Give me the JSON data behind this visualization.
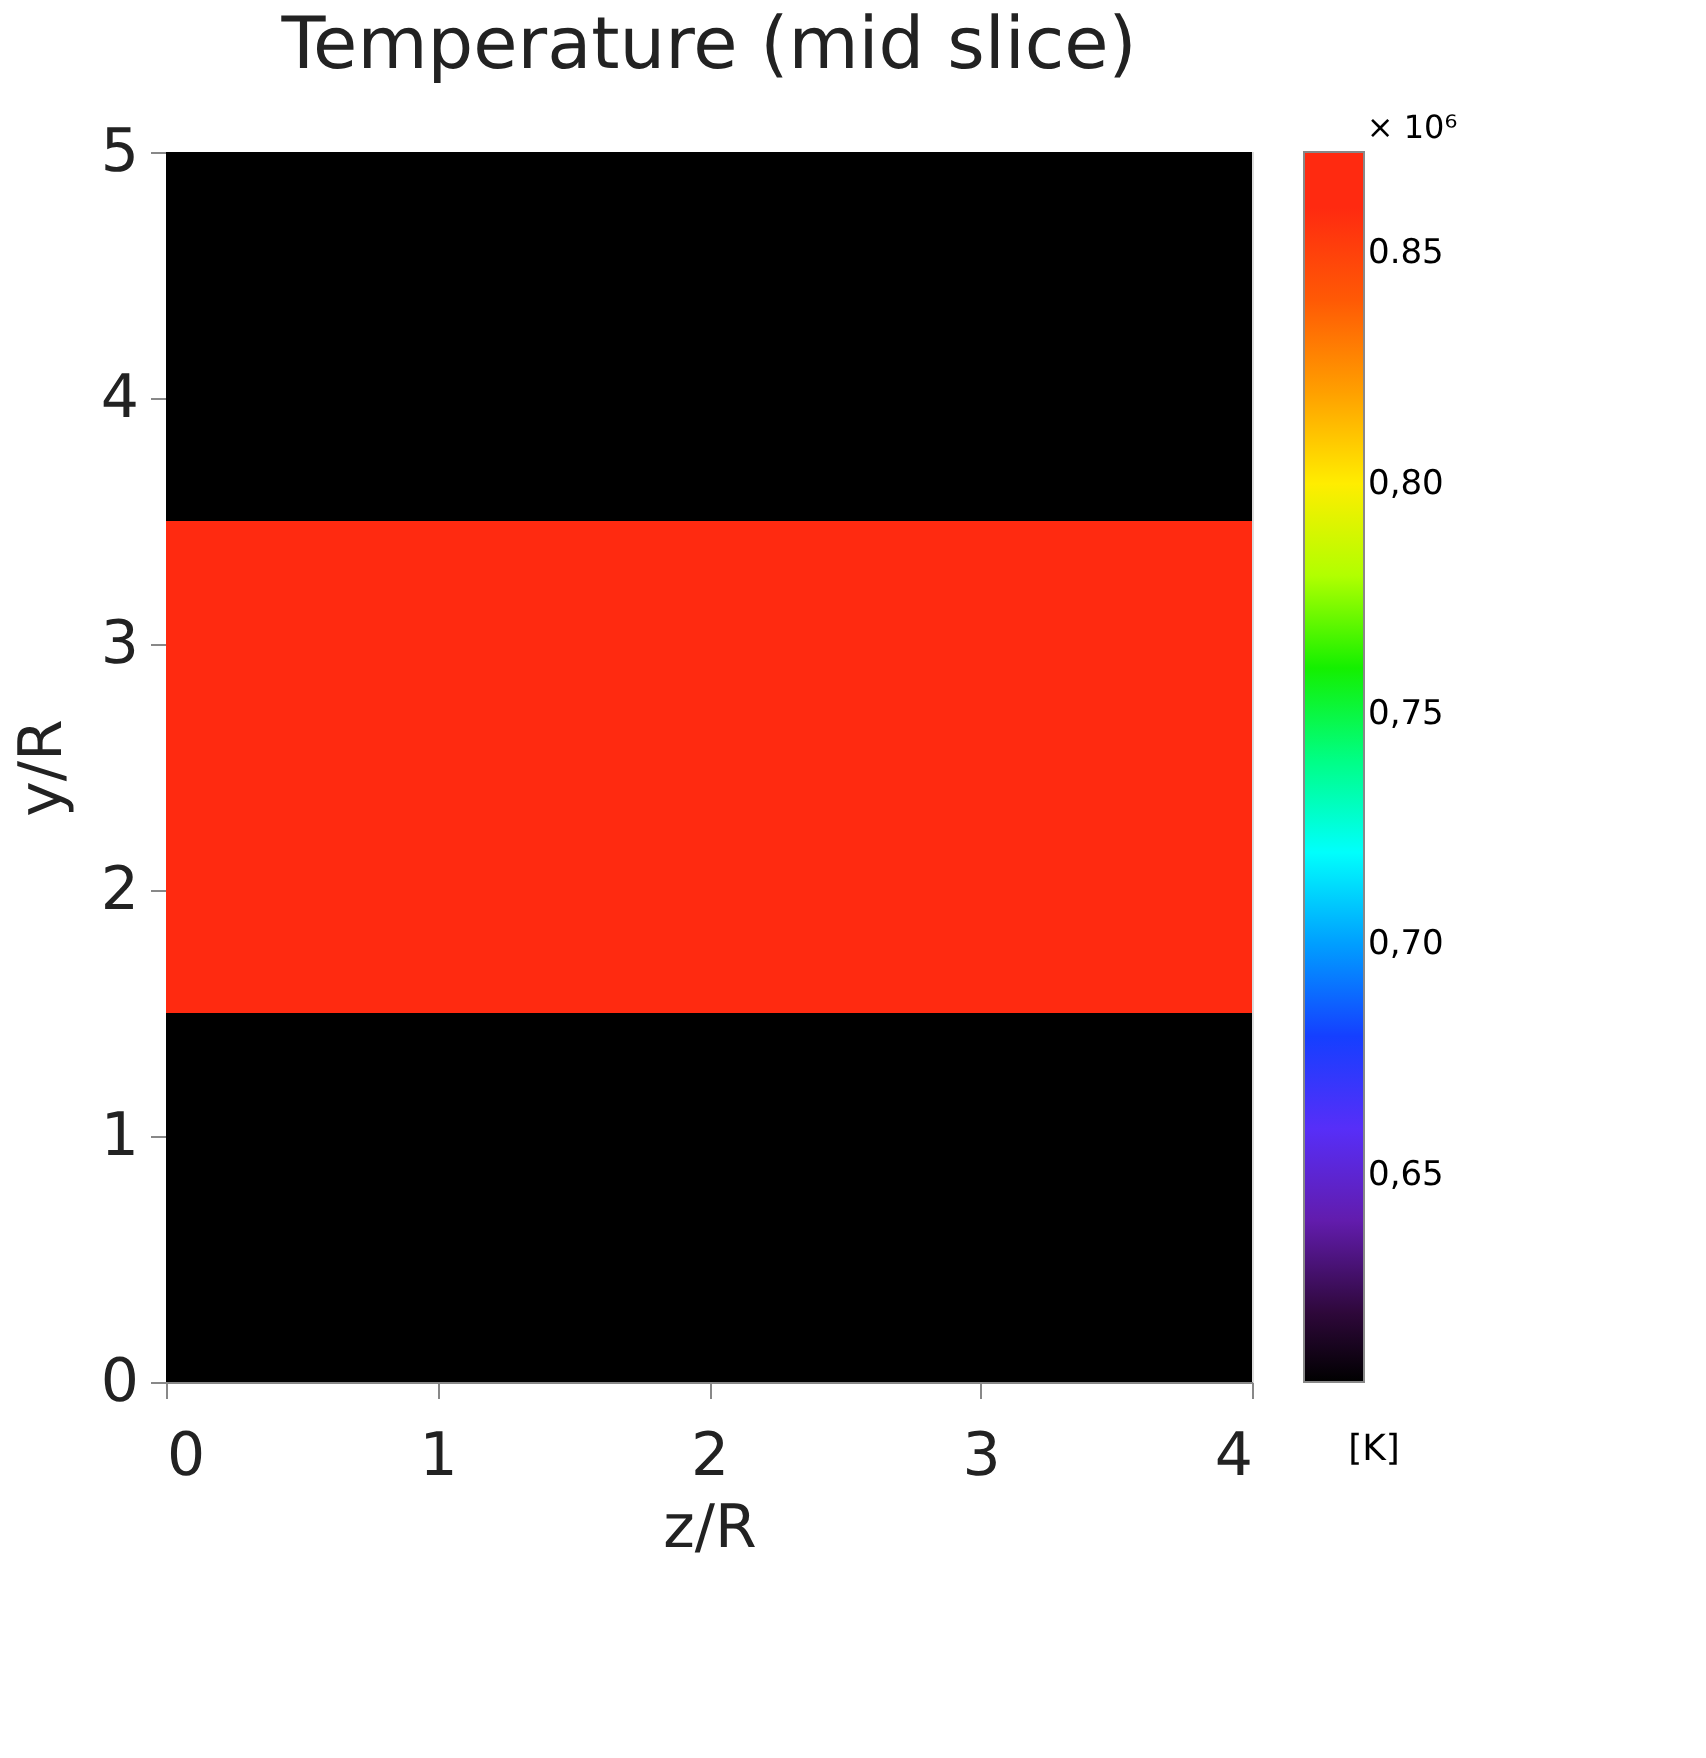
{
  "chart_data": {
    "type": "heatmap",
    "title": "Temperature (mid slice)",
    "xlabel": "z/R",
    "ylabel": "y/R",
    "clabel": "[K]",
    "annotations": [
      "× 10⁶"
    ],
    "cells": [
      [
        0.605
      ],
      [
        0.605
      ],
      [
        0.605
      ],
      [
        0.872
      ],
      [
        0.872
      ],
      [
        0.872
      ],
      [
        0.872
      ],
      [
        0.605
      ],
      [
        0.605
      ],
      [
        0.605
      ]
    ],
    "xlim": [
      0,
      4
    ],
    "ylim": [
      0,
      5
    ],
    "xticks": [
      0,
      1,
      2,
      3,
      4
    ],
    "yticks": [
      0,
      1,
      2,
      3,
      4,
      5
    ],
    "clim": [
      0.605,
      0.872
    ],
    "cticks": [
      {
        "value": 0.65,
        "label": "0,65"
      },
      {
        "value": 0.7,
        "label": "0,70"
      },
      {
        "value": 0.75,
        "label": "0,75"
      },
      {
        "value": 0.8,
        "label": "0,80"
      },
      {
        "value": 0.85,
        "label": "0.85"
      }
    ]
  }
}
